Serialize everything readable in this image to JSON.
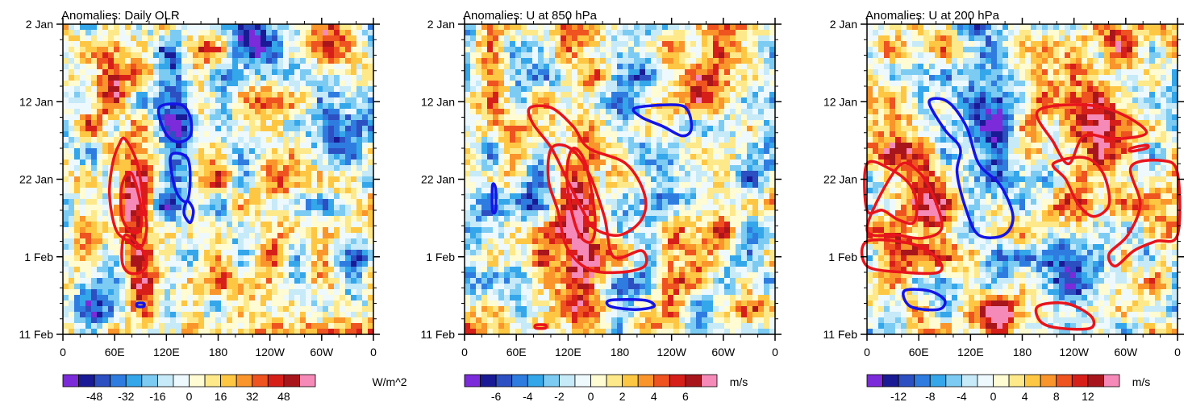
{
  "chart_data": [
    {
      "type": "heatmap",
      "title": "Anomalies: Daily OLR",
      "y_ticks": [
        "2 Jan",
        "12 Jan",
        "22 Jan",
        "1 Feb",
        "11 Feb"
      ],
      "x_ticks": [
        "0",
        "60E",
        "120E",
        "180",
        "120W",
        "60W",
        "0"
      ],
      "colorbar": {
        "labels": [
          "-48",
          "-32",
          "-16",
          "0",
          "16",
          "32",
          "48"
        ],
        "units": "W/m^2"
      }
    },
    {
      "type": "heatmap",
      "title": "Anomalies: U at 850 hPa",
      "y_ticks": [
        "2 Jan",
        "12 Jan",
        "22 Jan",
        "1 Feb",
        "11 Feb"
      ],
      "x_ticks": [
        "0",
        "60E",
        "120E",
        "180",
        "120W",
        "60W",
        "0"
      ],
      "colorbar": {
        "labels": [
          "-6",
          "-4",
          "-2",
          "0",
          "2",
          "4",
          "6"
        ],
        "units": "m/s"
      }
    },
    {
      "type": "heatmap",
      "title": "Anomalies: U at 200 hPa",
      "y_ticks": [
        "2 Jan",
        "12 Jan",
        "22 Jan",
        "1 Feb",
        "11 Feb"
      ],
      "x_ticks": [
        "0",
        "60E",
        "120E",
        "180",
        "120W",
        "60W",
        "0"
      ],
      "colorbar": {
        "labels": [
          "-12",
          "-8",
          "-4",
          "0",
          "4",
          "8",
          "12"
        ],
        "units": "m/s"
      }
    }
  ],
  "palette": {
    "negative": [
      "#7b2bd9",
      "#1a1a96",
      "#2c4fc2",
      "#2f7ce0",
      "#34a6ea",
      "#7ccbf3",
      "#c6eaf8",
      "#eef9fd"
    ],
    "positive": [
      "#fffbd2",
      "#fde98a",
      "#fdc744",
      "#f9952b",
      "#ee5320",
      "#d71f1a",
      "#a8161b",
      "#f58ab8"
    ],
    "contour_positive": "#e8141c",
    "contour_negative": "#1414e6"
  }
}
